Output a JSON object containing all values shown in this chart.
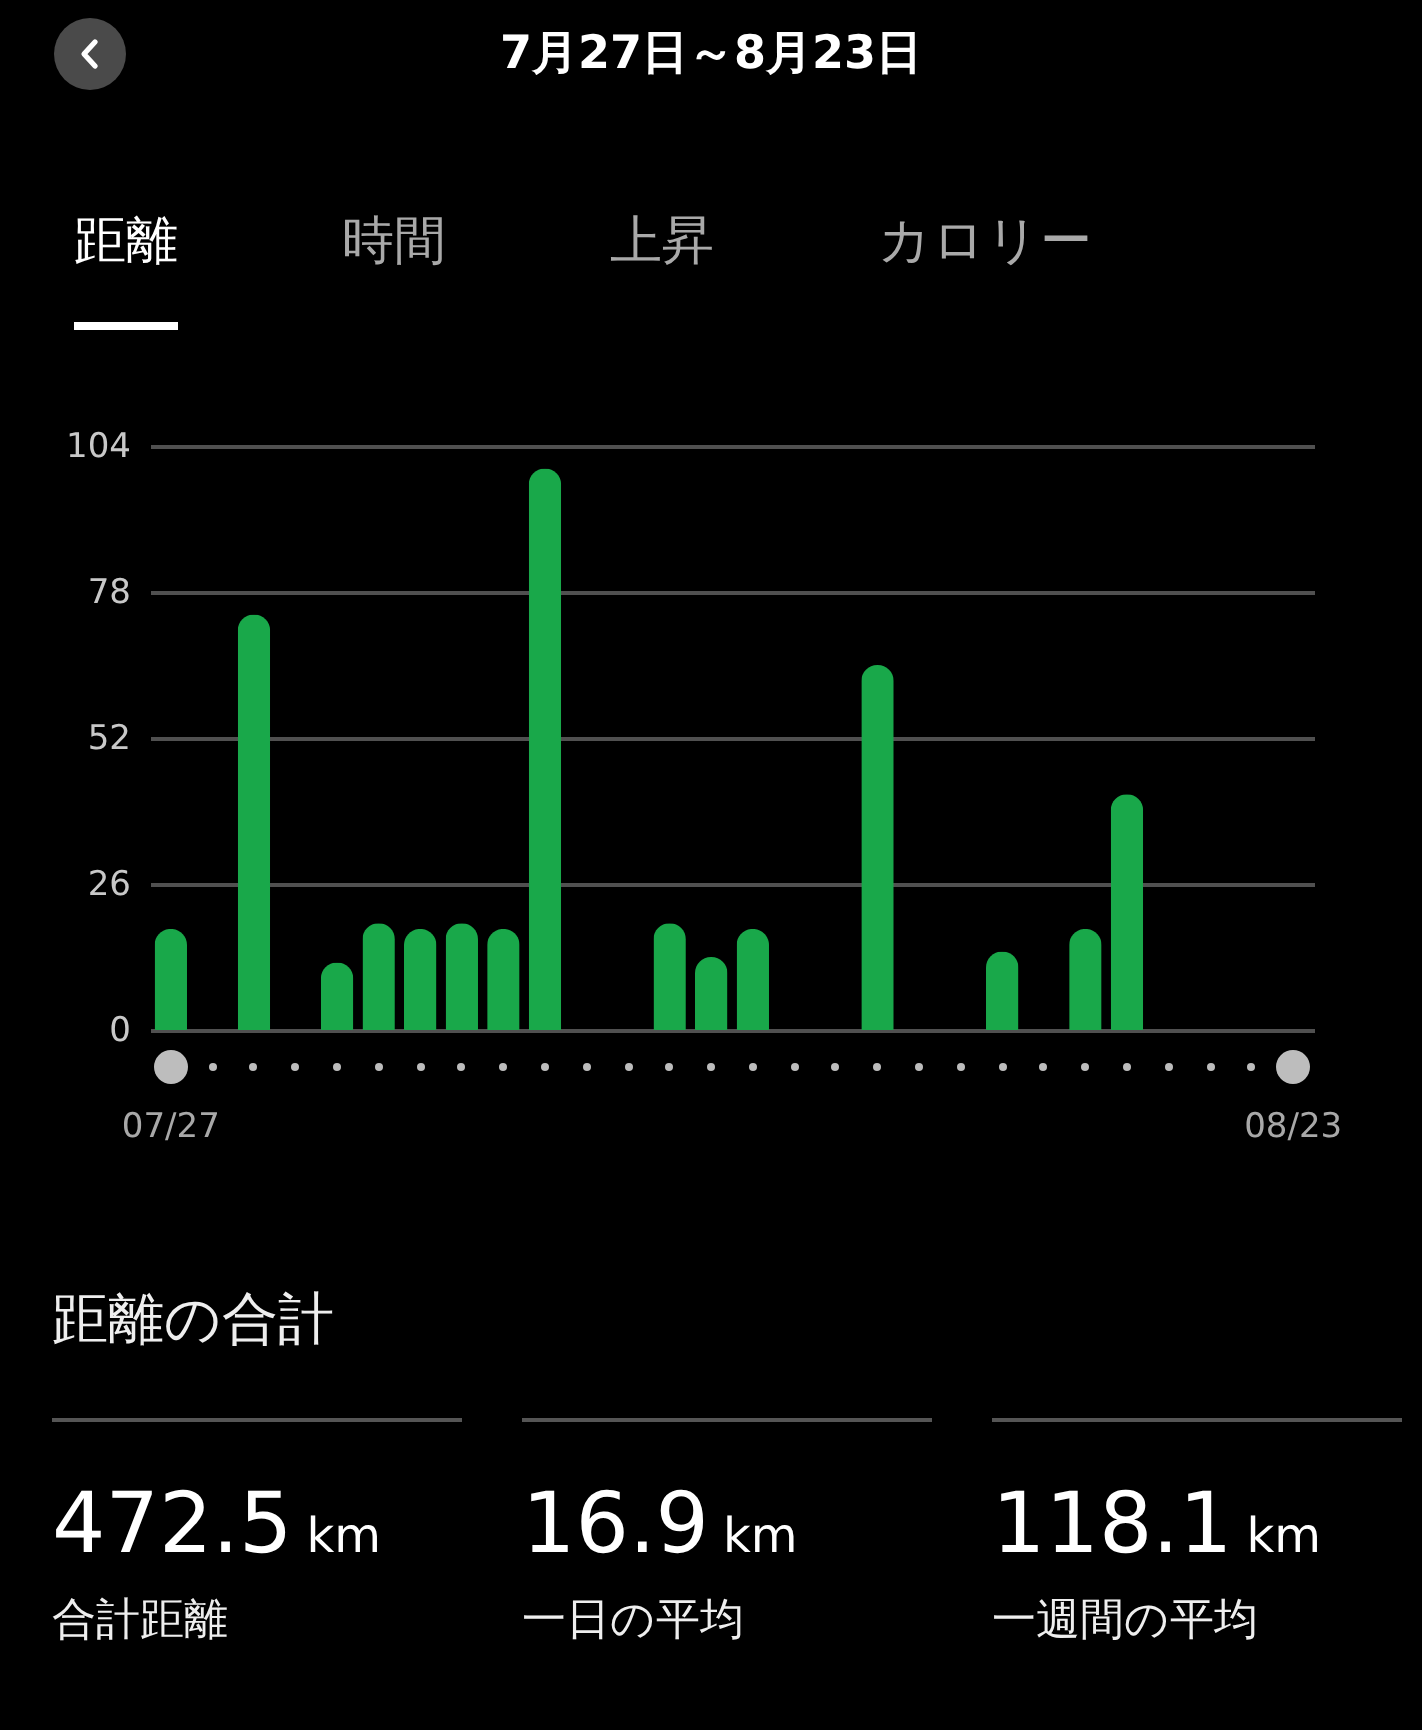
{
  "chart_data": [
    {
      "type": "bar",
      "title": "7月27日～8月23日",
      "annotations": [
        "距離",
        "時間",
        "上昇",
        "カロリー"
      ],
      "categories": [
        "07/27",
        null,
        null,
        null,
        null,
        null,
        null,
        null,
        null,
        null,
        null,
        null,
        null,
        null,
        null,
        null,
        null,
        null,
        null,
        null,
        null,
        null,
        null,
        null,
        null,
        null,
        null,
        "08/23"
      ],
      "values": [
        18,
        null,
        74,
        null,
        12,
        19,
        18,
        19,
        18,
        100,
        null,
        null,
        19,
        13,
        18,
        null,
        null,
        65,
        null,
        null,
        14,
        null,
        18,
        42,
        null,
        null,
        null,
        null
      ],
      "color": "#19a84a",
      "ylim": [
        0,
        104
      ],
      "yticks": [
        0,
        26,
        52,
        78,
        104
      ],
      "grid": "y"
    },
    {
      "type": "other",
      "title": "距離の合計",
      "annotations": [
        "472.5 km",
        "合計距離",
        "16.9 km",
        "一日の平均",
        "118.1 km",
        "一週間の平均"
      ]
    }
  ]
}
